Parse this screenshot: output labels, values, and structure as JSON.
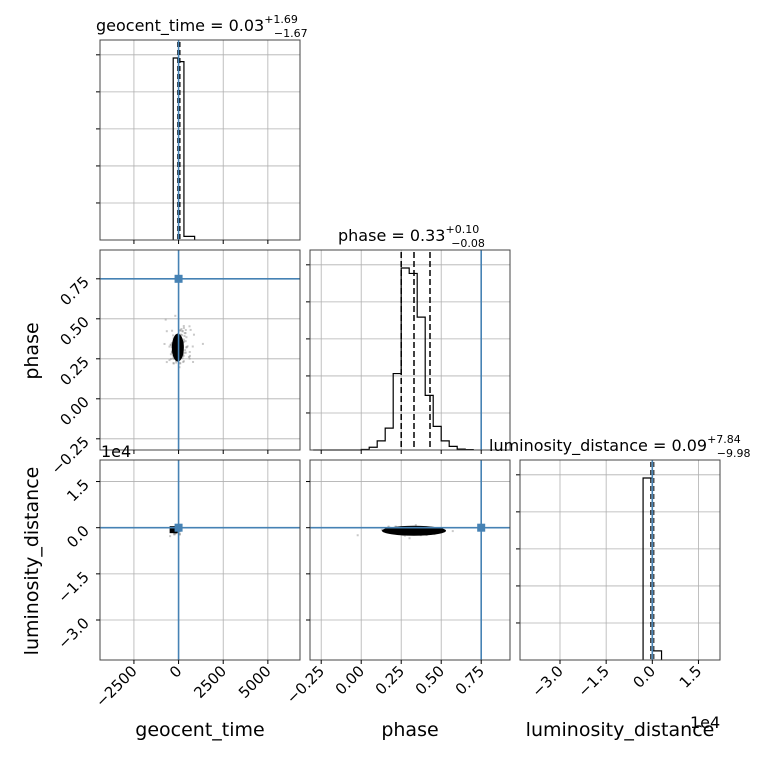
{
  "chart_data": {
    "type": "corner",
    "parameters": [
      {
        "key": "geocent_time",
        "label": "geocent_time",
        "title_param": "geocent_time",
        "median": "0.03",
        "upper": "+1.69",
        "lower": "−1.67",
        "truth": 0,
        "range": [
          -4400,
          6800
        ],
        "ticks": [
          -2500,
          0,
          2500,
          5000
        ],
        "tick_labels": [
          "−2500",
          "0",
          "2500",
          "5000"
        ]
      },
      {
        "key": "phase",
        "label": "phase",
        "title_param": "phase",
        "median": "0.33",
        "upper": "+0.10",
        "lower": "−0.08",
        "truth": 0.75,
        "range": [
          -0.32,
          0.93
        ],
        "ticks": [
          -0.25,
          0.0,
          0.25,
          0.5,
          0.75
        ],
        "tick_labels": [
          "−0.25",
          "0.00",
          "0.25",
          "0.50",
          "0.75"
        ],
        "quantiles": [
          0.25,
          0.33,
          0.43
        ]
      },
      {
        "key": "luminosity_distance",
        "label": "luminosity_distance",
        "title_param": "luminosity_distance",
        "median": "0.09",
        "upper": "+7.84",
        "lower": "−9.98",
        "truth": 0,
        "range": [
          -4.3,
          2.2
        ],
        "ticks": [
          -3.0,
          -1.5,
          0.0,
          1.5
        ],
        "tick_labels": [
          "−3.0",
          "−1.5",
          "0.0",
          "1.5"
        ],
        "exponent": "1e4"
      }
    ],
    "histograms": {
      "geocent_time": {
        "bins": [
          [
            -300,
            0,
            1.0
          ],
          [
            0,
            300,
            0.98
          ],
          [
            300,
            900,
            0.02
          ]
        ]
      },
      "phase": {
        "edges": [
          -0.3,
          -0.25,
          -0.2,
          -0.15,
          -0.1,
          -0.05,
          0.0,
          0.05,
          0.1,
          0.15,
          0.2,
          0.25,
          0.3,
          0.35,
          0.4,
          0.45,
          0.5,
          0.55,
          0.6,
          0.65,
          0.7
        ],
        "counts": [
          0,
          0,
          0,
          0,
          0,
          0,
          0.003,
          0.015,
          0.05,
          0.12,
          0.42,
          1.0,
          0.97,
          0.73,
          0.3,
          0.13,
          0.05,
          0.02,
          0.005,
          0.002
        ]
      },
      "luminosity_distance": {
        "bins": [
          [
            -0.3,
            0,
            1.0
          ],
          [
            0,
            0.3,
            0.05
          ]
        ]
      }
    },
    "truth_color": "#4682b4",
    "line_color": "#000000",
    "grid": true
  }
}
